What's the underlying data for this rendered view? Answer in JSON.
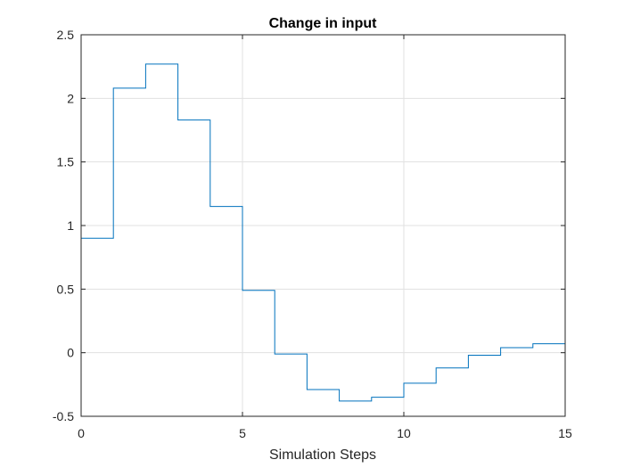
{
  "chart_data": {
    "type": "line",
    "step": true,
    "title": "Change in input",
    "xlabel": "Simulation Steps",
    "ylabel": "",
    "xlim": [
      0,
      15
    ],
    "ylim": [
      -0.5,
      2.5
    ],
    "grid": true,
    "xticks": [
      0,
      5,
      10,
      15
    ],
    "xtick_labels": [
      "0",
      "5",
      "10",
      "15"
    ],
    "yticks": [
      -0.5,
      0,
      0.5,
      1,
      1.5,
      2,
      2.5
    ],
    "ytick_labels": [
      "-0.5",
      "0",
      "0.5",
      "1",
      "1.5",
      "2",
      "2.5"
    ],
    "series": [
      {
        "color": "#0072BD",
        "x": [
          0,
          1,
          2,
          3,
          4,
          5,
          6,
          7,
          8,
          9,
          10,
          11,
          12,
          13,
          14,
          15
        ],
        "values": [
          0.9,
          2.08,
          2.27,
          1.83,
          1.15,
          0.49,
          -0.01,
          -0.29,
          -0.38,
          -0.35,
          -0.24,
          -0.12,
          -0.02,
          0.04,
          0.07,
          0.07
        ]
      }
    ]
  }
}
